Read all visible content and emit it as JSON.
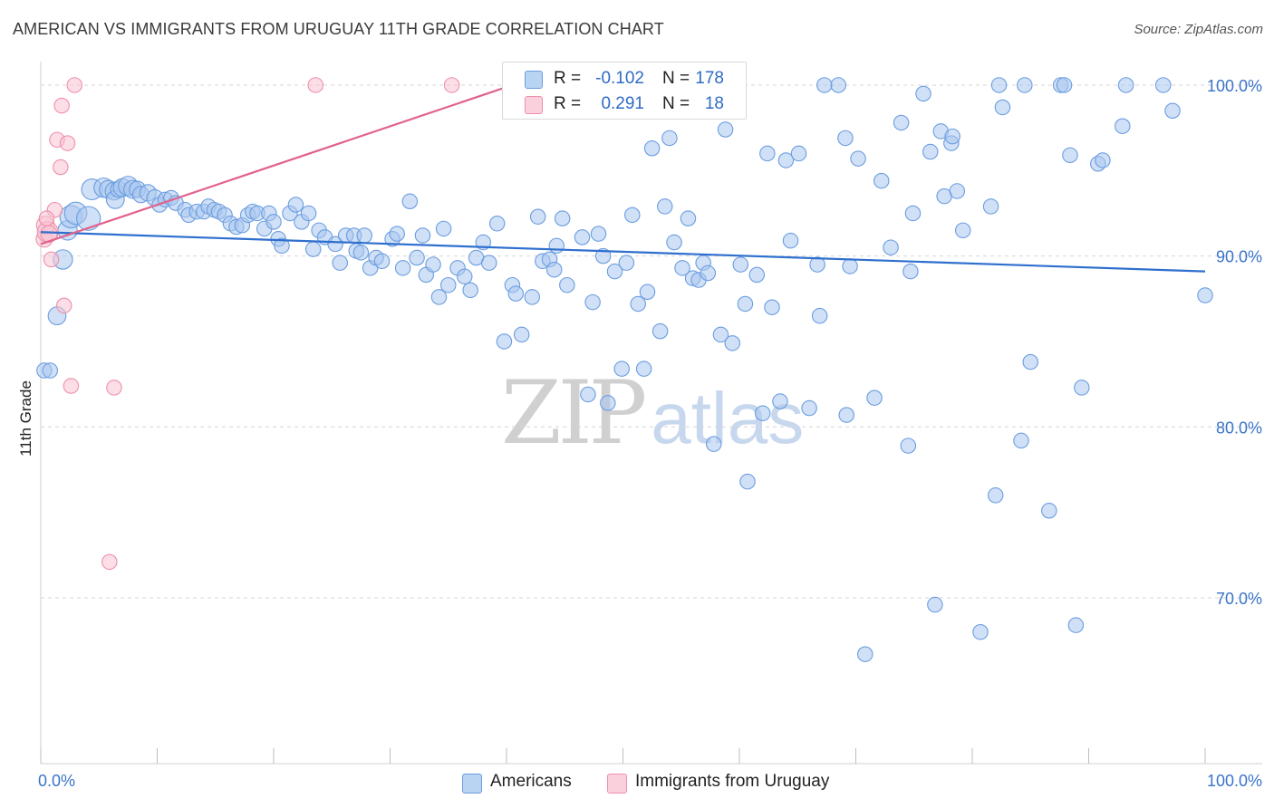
{
  "title": "AMERICAN VS IMMIGRANTS FROM URUGUAY 11TH GRADE CORRELATION CHART",
  "source": "Source: ZipAtlas.com",
  "watermark": {
    "zip": "ZIP",
    "atlas": "atlas"
  },
  "colors": {
    "americans_fill": "#a9c7ee",
    "americans_stroke": "#6b9de0",
    "americans_line": "#2f6fce",
    "uruguay_fill": "#f7c2d1",
    "uruguay_stroke": "#ee8fac",
    "uruguay_line": "#e2628c",
    "grid": "#d6d6d6",
    "tick_text": "#3a74c9"
  },
  "legend": {
    "americans": {
      "r_label": "R =",
      "r_value": "-0.102",
      "n_label": "N =",
      "n_value": "178"
    },
    "uruguay": {
      "r_label": "R =",
      "r_value": "0.291",
      "n_label": "N =",
      "n_value": "18"
    }
  },
  "chart_data": {
    "type": "scatter",
    "title": "AMERICAN VS IMMIGRANTS FROM URUGUAY 11TH GRADE CORRELATION CHART",
    "xlabel": "",
    "ylabel": "11th Grade",
    "xlim": [
      0,
      100
    ],
    "ylim": [
      60.3,
      101.8
    ],
    "x_tick_labels": [
      "0.0%",
      "100.0%"
    ],
    "y_ticks": [
      70,
      80,
      90,
      100
    ],
    "y_tick_labels": [
      "70.0%",
      "80.0%",
      "90.0%",
      "100.0%"
    ],
    "grid": "horizontal dashed",
    "legend_bottom": [
      "Americans",
      "Immigrants from Uruguay"
    ],
    "series": [
      {
        "name": "Americans",
        "trend": {
          "x": [
            0,
            100
          ],
          "y": [
            91.4,
            89.1
          ]
        },
        "points": [
          [
            0.3,
            83.3,
            1
          ],
          [
            0.8,
            83.3,
            1
          ],
          [
            1.4,
            86.5,
            1.2
          ],
          [
            1.9,
            89.8,
            1.3
          ],
          [
            2.3,
            91.5,
            1.3
          ],
          [
            2.6,
            92.3,
            1.5
          ],
          [
            3.0,
            92.5,
            1.5
          ],
          [
            4.1,
            92.2,
            1.6
          ],
          [
            4.4,
            93.9,
            1.4
          ],
          [
            5.4,
            94,
            1.3
          ],
          [
            5.8,
            93.9,
            1.2
          ],
          [
            6.3,
            93.8,
            1.2
          ],
          [
            6.4,
            93.3,
            1.2
          ],
          [
            6.7,
            93.9,
            1.1
          ],
          [
            7.0,
            94,
            1.2
          ],
          [
            7.5,
            94.1,
            1.3
          ],
          [
            7.9,
            93.9,
            1.2
          ],
          [
            8.3,
            93.9,
            1.1
          ],
          [
            8.6,
            93.6,
            1.1
          ],
          [
            9.2,
            93.7,
            1.1
          ],
          [
            9.8,
            93.4,
            1.1
          ],
          [
            10.2,
            93.0,
            1
          ],
          [
            10.7,
            93.3,
            1
          ],
          [
            11.2,
            93.4,
            1
          ],
          [
            11.6,
            93.1,
            1
          ],
          [
            12.4,
            92.7,
            1
          ],
          [
            12.7,
            92.4,
            1
          ],
          [
            13.4,
            92.6,
            1
          ],
          [
            14.0,
            92.6,
            1
          ],
          [
            14.4,
            92.9,
            1
          ],
          [
            14.9,
            92.7,
            1
          ],
          [
            15.3,
            92.6,
            1
          ],
          [
            15.8,
            92.4,
            1
          ],
          [
            16.3,
            91.9,
            1
          ],
          [
            16.8,
            91.7,
            1
          ],
          [
            17.3,
            91.8,
            1
          ],
          [
            17.8,
            92.4,
            1
          ],
          [
            18.2,
            92.6,
            1
          ],
          [
            18.6,
            92.5,
            1
          ],
          [
            19.2,
            91.6,
            1
          ],
          [
            19.6,
            92.5,
            1
          ],
          [
            20.0,
            92.0,
            1
          ],
          [
            20.4,
            91.0,
            1
          ],
          [
            20.7,
            90.6,
            1
          ],
          [
            21.4,
            92.5,
            1
          ],
          [
            21.9,
            93.0,
            1
          ],
          [
            22.4,
            92.0,
            1
          ],
          [
            23.0,
            92.5,
            1
          ],
          [
            23.4,
            90.4,
            1
          ],
          [
            23.9,
            91.5,
            1
          ],
          [
            24.4,
            91.1,
            1
          ],
          [
            25.3,
            90.7,
            1
          ],
          [
            25.7,
            89.6,
            1
          ],
          [
            26.2,
            91.2,
            1
          ],
          [
            26.9,
            91.2,
            1
          ],
          [
            27.1,
            90.3,
            1
          ],
          [
            27.5,
            90.2,
            1
          ],
          [
            27.8,
            91.2,
            1
          ],
          [
            28.3,
            89.3,
            1
          ],
          [
            28.8,
            89.9,
            1
          ],
          [
            29.3,
            89.7,
            1
          ],
          [
            30.2,
            91.0,
            1
          ],
          [
            30.6,
            91.3,
            1
          ],
          [
            31.1,
            89.3,
            1
          ],
          [
            31.7,
            93.2,
            1
          ],
          [
            32.3,
            89.9,
            1
          ],
          [
            32.8,
            91.2,
            1
          ],
          [
            33.1,
            88.9,
            1
          ],
          [
            33.7,
            89.5,
            1
          ],
          [
            34.2,
            87.6,
            1
          ],
          [
            34.6,
            91.6,
            1
          ],
          [
            35.0,
            88.3,
            1
          ],
          [
            35.8,
            89.3,
            1
          ],
          [
            36.4,
            88.8,
            1
          ],
          [
            36.9,
            88.0,
            1
          ],
          [
            37.4,
            89.9,
            1
          ],
          [
            38.0,
            90.8,
            1
          ],
          [
            38.5,
            89.6,
            1
          ],
          [
            39.2,
            91.9,
            1
          ],
          [
            39.8,
            85.0,
            1
          ],
          [
            40.5,
            88.3,
            1
          ],
          [
            40.8,
            87.8,
            1
          ],
          [
            41.3,
            85.4,
            1
          ],
          [
            42.2,
            87.6,
            1
          ],
          [
            42.7,
            92.3,
            1
          ],
          [
            43.1,
            89.7,
            1
          ],
          [
            43.7,
            89.8,
            1
          ],
          [
            44.1,
            89.2,
            1
          ],
          [
            44.3,
            90.6,
            1
          ],
          [
            44.8,
            92.2,
            1
          ],
          [
            45.2,
            88.3,
            1
          ],
          [
            46.5,
            91.1,
            1
          ],
          [
            47.0,
            81.9,
            1
          ],
          [
            47.4,
            87.3,
            1
          ],
          [
            47.9,
            91.3,
            1
          ],
          [
            48.3,
            90.0,
            1
          ],
          [
            48.7,
            81.4,
            1
          ],
          [
            49.3,
            89.1,
            1
          ],
          [
            49.9,
            83.4,
            1
          ],
          [
            50.3,
            89.6,
            1
          ],
          [
            50.8,
            92.4,
            1
          ],
          [
            51.3,
            87.2,
            1
          ],
          [
            51.8,
            83.4,
            1
          ],
          [
            52.1,
            87.9,
            1
          ],
          [
            52.5,
            96.3,
            1
          ],
          [
            53.2,
            85.6,
            1
          ],
          [
            53.6,
            92.9,
            1
          ],
          [
            54.0,
            96.9,
            1
          ],
          [
            54.4,
            90.8,
            1
          ],
          [
            55.1,
            89.3,
            1
          ],
          [
            55.6,
            92.2,
            1
          ],
          [
            56.0,
            88.7,
            1
          ],
          [
            56.5,
            88.6,
            1
          ],
          [
            56.9,
            89.6,
            1
          ],
          [
            57.3,
            89.0,
            1
          ],
          [
            57.8,
            79.0,
            1
          ],
          [
            58.4,
            85.4,
            1
          ],
          [
            58.8,
            97.4,
            1
          ],
          [
            59.4,
            84.9,
            1
          ],
          [
            60.1,
            89.5,
            1
          ],
          [
            60.5,
            87.2,
            1
          ],
          [
            60.7,
            76.8,
            1
          ],
          [
            61.5,
            88.9,
            1
          ],
          [
            62.0,
            80.8,
            1
          ],
          [
            62.4,
            96.0,
            1
          ],
          [
            62.8,
            87.0,
            1
          ],
          [
            63.5,
            81.5,
            1
          ],
          [
            64.0,
            95.6,
            1
          ],
          [
            64.4,
            90.9,
            1
          ],
          [
            65.1,
            96.0,
            1
          ],
          [
            66.0,
            81.1,
            1
          ],
          [
            66.7,
            89.5,
            1
          ],
          [
            66.9,
            86.5,
            1
          ],
          [
            67.3,
            100.0,
            1
          ],
          [
            68.5,
            100.0,
            1
          ],
          [
            69.1,
            96.9,
            1
          ],
          [
            69.2,
            80.7,
            1
          ],
          [
            69.5,
            89.4,
            1
          ],
          [
            70.2,
            95.7,
            1
          ],
          [
            70.8,
            66.7,
            1
          ],
          [
            71.6,
            81.7,
            1
          ],
          [
            72.2,
            94.4,
            1
          ],
          [
            73.0,
            90.5,
            1
          ],
          [
            73.9,
            97.8,
            1
          ],
          [
            74.5,
            78.9,
            1
          ],
          [
            74.7,
            89.1,
            1
          ],
          [
            74.9,
            92.5,
            1
          ],
          [
            75.8,
            99.5,
            1
          ],
          [
            76.4,
            96.1,
            1
          ],
          [
            76.8,
            69.6,
            1
          ],
          [
            77.3,
            97.3,
            1
          ],
          [
            77.6,
            93.5,
            1
          ],
          [
            78.2,
            96.6,
            1
          ],
          [
            78.3,
            97.0,
            1
          ],
          [
            78.7,
            93.8,
            1
          ],
          [
            79.2,
            91.5,
            1
          ],
          [
            80.7,
            68.0,
            1
          ],
          [
            81.6,
            92.9,
            1
          ],
          [
            82.0,
            76.0,
            1
          ],
          [
            82.3,
            100.0,
            1
          ],
          [
            82.6,
            98.7,
            1
          ],
          [
            84.2,
            79.2,
            1
          ],
          [
            84.5,
            100.0,
            1
          ],
          [
            85.0,
            83.8,
            1
          ],
          [
            86.6,
            75.1,
            1
          ],
          [
            87.6,
            100.0,
            1
          ],
          [
            87.9,
            100.0,
            1
          ],
          [
            88.4,
            95.9,
            1
          ],
          [
            88.9,
            68.4,
            1
          ],
          [
            89.4,
            82.3,
            1
          ],
          [
            90.8,
            95.4,
            1
          ],
          [
            91.2,
            95.6,
            1
          ],
          [
            92.9,
            97.6,
            1
          ],
          [
            93.2,
            100.0,
            1
          ],
          [
            96.4,
            100.0,
            1
          ],
          [
            97.2,
            98.5,
            1
          ],
          [
            100.0,
            87.7,
            1
          ]
        ]
      },
      {
        "name": "Immigrants from Uruguay",
        "trend": {
          "x": [
            0,
            40.5
          ],
          "y": [
            90.7,
            100.0
          ]
        },
        "points": [
          [
            0.3,
            91.0,
            1.1
          ],
          [
            0.4,
            91.8,
            1.2
          ],
          [
            0.6,
            91.4,
            1.4
          ],
          [
            0.7,
            91.3,
            1.1
          ],
          [
            0.9,
            89.8,
            1
          ],
          [
            1.2,
            92.7,
            1
          ],
          [
            1.4,
            96.8,
            1
          ],
          [
            1.7,
            95.2,
            1
          ],
          [
            1.8,
            98.8,
            1
          ],
          [
            2.0,
            87.1,
            1
          ],
          [
            2.3,
            96.6,
            1
          ],
          [
            2.6,
            82.4,
            1
          ],
          [
            2.9,
            100.0,
            1
          ],
          [
            5.9,
            72.1,
            1
          ],
          [
            6.3,
            82.3,
            1
          ],
          [
            23.6,
            100.0,
            1
          ],
          [
            35.3,
            100.0,
            1
          ],
          [
            0.5,
            92.2,
            1
          ]
        ]
      }
    ]
  }
}
